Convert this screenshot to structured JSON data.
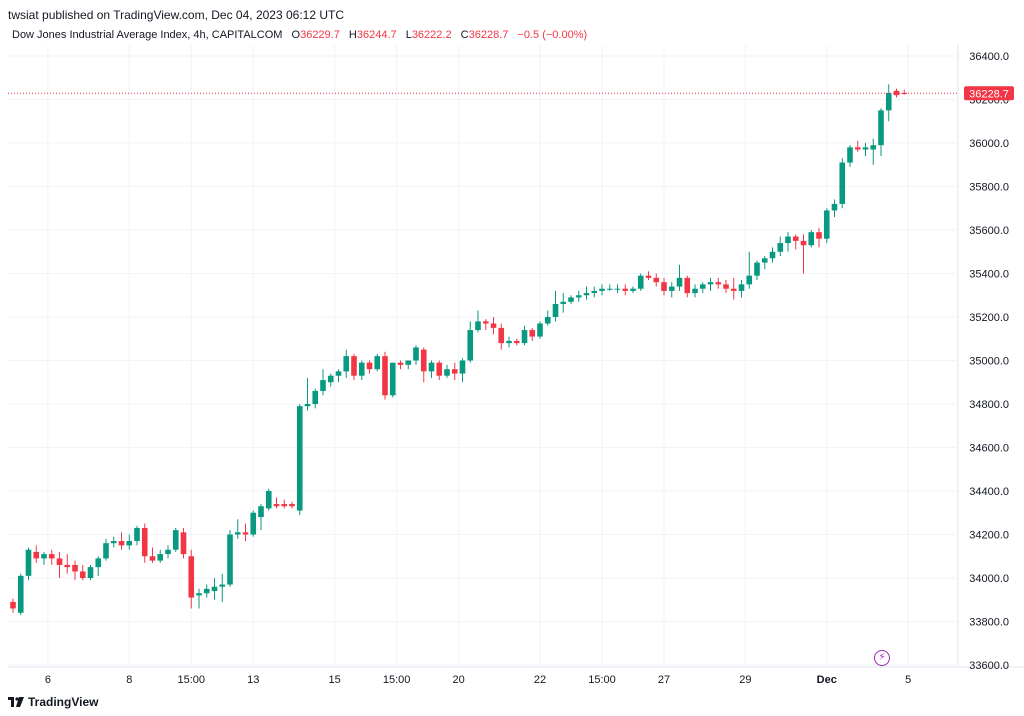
{
  "header": {
    "publisher": "twsiat",
    "published_on": "published on TradingView.com, Dec 04, 2023 06:12 UTC"
  },
  "legend": {
    "symbol": "Dow Jones Industrial Average Index, 4h, CAPITALCOM",
    "o_label": "O",
    "o_value": "36229.7",
    "h_label": "H",
    "h_value": "36244.7",
    "l_label": "L",
    "l_value": "36222.2",
    "c_label": "C",
    "c_value": "36228.7",
    "change": "−0.5 (−0.00%)"
  },
  "footer": {
    "brand": "TradingView"
  },
  "colors": {
    "up": "#089981",
    "down": "#f23645",
    "grid": "#f0f3fa",
    "axis_text": "#131722",
    "price_line": "#f23645"
  },
  "chart_data": {
    "type": "candlestick",
    "title": "",
    "xlabel": "",
    "ylabel": "",
    "ylim": [
      33560,
      36500
    ],
    "y_ticks": [
      33600,
      33800,
      34000,
      34200,
      34400,
      34600,
      34800,
      35000,
      35200,
      35400,
      35600,
      35800,
      36000,
      36200,
      36400
    ],
    "y_tick_labels": [
      "33600.0",
      "33800.0",
      "34000.0",
      "34200.0",
      "34400.0",
      "34600.0",
      "34800.0",
      "35000.0",
      "35200.0",
      "35400.0",
      "35600.0",
      "35800.0",
      "36000.0",
      "36200.0",
      "36400.0"
    ],
    "x_tick_labels": [
      {
        "label": "6",
        "bar": 4.5
      },
      {
        "label": "8",
        "bar": 15
      },
      {
        "label": "15:00",
        "bar": 23
      },
      {
        "label": "13",
        "bar": 31
      },
      {
        "label": "15",
        "bar": 41.5
      },
      {
        "label": "15:00",
        "bar": 49.5
      },
      {
        "label": "20",
        "bar": 57.5
      },
      {
        "label": "22",
        "bar": 68
      },
      {
        "label": "15:00",
        "bar": 76
      },
      {
        "label": "27",
        "bar": 84
      },
      {
        "label": "29",
        "bar": 94.5
      },
      {
        "label": "Dec",
        "bar": 105
      },
      {
        "label": "5",
        "bar": 115.5
      }
    ],
    "last_price_label": "36228.7",
    "last_price": 36228.7,
    "candles": [
      [
        33890,
        33905,
        33840,
        33860
      ],
      [
        33840,
        34020,
        33830,
        34010
      ],
      [
        34010,
        34140,
        33990,
        34130
      ],
      [
        34120,
        34150,
        34070,
        34090
      ],
      [
        34090,
        34120,
        34060,
        34110
      ],
      [
        34110,
        34130,
        34060,
        34090
      ],
      [
        34090,
        34120,
        34000,
        34060
      ],
      [
        34060,
        34110,
        34020,
        34050
      ],
      [
        34060,
        34080,
        33990,
        34030
      ],
      [
        34030,
        34060,
        33990,
        34000
      ],
      [
        34000,
        34060,
        33990,
        34050
      ],
      [
        34050,
        34100,
        34010,
        34090
      ],
      [
        34090,
        34180,
        34080,
        34160
      ],
      [
        34160,
        34190,
        34140,
        34170
      ],
      [
        34170,
        34210,
        34130,
        34150
      ],
      [
        34150,
        34200,
        34130,
        34170
      ],
      [
        34170,
        34240,
        34150,
        34230
      ],
      [
        34230,
        34250,
        34070,
        34100
      ],
      [
        34100,
        34140,
        34070,
        34080
      ],
      [
        34080,
        34130,
        34070,
        34110
      ],
      [
        34110,
        34150,
        34090,
        34130
      ],
      [
        34130,
        34230,
        34120,
        34220
      ],
      [
        34210,
        34230,
        34090,
        34110
      ],
      [
        34100,
        34130,
        33860,
        33910
      ],
      [
        33920,
        33950,
        33860,
        33930
      ],
      [
        33930,
        33970,
        33910,
        33950
      ],
      [
        33940,
        34000,
        33900,
        33960
      ],
      [
        33960,
        34020,
        33890,
        33970
      ],
      [
        33970,
        34220,
        33960,
        34200
      ],
      [
        34200,
        34270,
        34180,
        34210
      ],
      [
        34210,
        34250,
        34170,
        34200
      ],
      [
        34200,
        34310,
        34190,
        34300
      ],
      [
        34280,
        34340,
        34220,
        34330
      ],
      [
        34320,
        34410,
        34310,
        34400
      ],
      [
        34340,
        34370,
        34320,
        34330
      ],
      [
        34340,
        34360,
        34320,
        34330
      ],
      [
        34340,
        34350,
        34320,
        34330
      ],
      [
        34310,
        34800,
        34290,
        34790
      ],
      [
        34790,
        34920,
        34770,
        34800
      ],
      [
        34800,
        34870,
        34780,
        34860
      ],
      [
        34860,
        34960,
        34840,
        34910
      ],
      [
        34900,
        34940,
        34880,
        34930
      ],
      [
        34930,
        34960,
        34900,
        34950
      ],
      [
        34950,
        35050,
        34920,
        35020
      ],
      [
        35020,
        35030,
        34910,
        34930
      ],
      [
        34930,
        35000,
        34910,
        34990
      ],
      [
        34990,
        35000,
        34940,
        34960
      ],
      [
        34960,
        35030,
        34950,
        35020
      ],
      [
        35020,
        35040,
        34820,
        34840
      ],
      [
        34840,
        34990,
        34830,
        34990
      ],
      [
        34990,
        35000,
        34960,
        34980
      ],
      [
        34980,
        35000,
        34960,
        35000
      ],
      [
        35000,
        35070,
        34980,
        35060
      ],
      [
        35050,
        35060,
        34900,
        34950
      ],
      [
        34950,
        35000,
        34920,
        34990
      ],
      [
        34990,
        35000,
        34910,
        34930
      ],
      [
        34930,
        34980,
        34920,
        34960
      ],
      [
        34960,
        34990,
        34910,
        34940
      ],
      [
        34940,
        35010,
        34900,
        35000
      ],
      [
        35000,
        35180,
        34990,
        35140
      ],
      [
        35140,
        35230,
        35130,
        35180
      ],
      [
        35180,
        35190,
        35140,
        35170
      ],
      [
        35170,
        35200,
        35120,
        35150
      ],
      [
        35150,
        35170,
        35050,
        35080
      ],
      [
        35080,
        35110,
        35060,
        35090
      ],
      [
        35090,
        35100,
        35070,
        35080
      ],
      [
        35080,
        35160,
        35070,
        35140
      ],
      [
        35140,
        35150,
        35090,
        35110
      ],
      [
        35110,
        35180,
        35100,
        35170
      ],
      [
        35170,
        35230,
        35160,
        35200
      ],
      [
        35200,
        35320,
        35180,
        35260
      ],
      [
        35260,
        35310,
        35220,
        35270
      ],
      [
        35270,
        35300,
        35260,
        35290
      ],
      [
        35290,
        35320,
        35270,
        35300
      ],
      [
        35300,
        35340,
        35280,
        35310
      ],
      [
        35310,
        35340,
        35290,
        35320
      ],
      [
        35320,
        35350,
        35300,
        35330
      ],
      [
        35330,
        35350,
        35320,
        35330
      ],
      [
        35330,
        35350,
        35310,
        35330
      ],
      [
        35330,
        35350,
        35300,
        35320
      ],
      [
        35320,
        35340,
        35310,
        35330
      ],
      [
        35330,
        35400,
        35320,
        35390
      ],
      [
        35390,
        35410,
        35370,
        35380
      ],
      [
        35380,
        35400,
        35340,
        35360
      ],
      [
        35360,
        35380,
        35300,
        35320
      ],
      [
        35320,
        35360,
        35290,
        35340
      ],
      [
        35340,
        35440,
        35320,
        35380
      ],
      [
        35380,
        35390,
        35290,
        35310
      ],
      [
        35310,
        35350,
        35290,
        35330
      ],
      [
        35330,
        35360,
        35310,
        35350
      ],
      [
        35350,
        35380,
        35320,
        35360
      ],
      [
        35360,
        35380,
        35330,
        35350
      ],
      [
        35350,
        35370,
        35310,
        35330
      ],
      [
        35330,
        35380,
        35280,
        35320
      ],
      [
        35320,
        35370,
        35290,
        35350
      ],
      [
        35350,
        35500,
        35330,
        35390
      ],
      [
        35390,
        35460,
        35370,
        35450
      ],
      [
        35450,
        35480,
        35420,
        35470
      ],
      [
        35470,
        35520,
        35450,
        35500
      ],
      [
        35500,
        35570,
        35480,
        35540
      ],
      [
        35540,
        35590,
        35500,
        35570
      ],
      [
        35570,
        35580,
        35510,
        35550
      ],
      [
        35550,
        35580,
        35400,
        35530
      ],
      [
        35530,
        35600,
        35520,
        35590
      ],
      [
        35590,
        35610,
        35520,
        35560
      ],
      [
        35560,
        35700,
        35540,
        35690
      ],
      [
        35690,
        35740,
        35660,
        35720
      ],
      [
        35720,
        35930,
        35700,
        35910
      ],
      [
        35910,
        35990,
        35890,
        35980
      ],
      [
        35980,
        36010,
        35960,
        35970
      ],
      [
        35970,
        36000,
        35940,
        35980
      ],
      [
        35970,
        36020,
        35900,
        35990
      ],
      [
        35990,
        36160,
        35940,
        36150
      ],
      [
        36150,
        36270,
        36100,
        36230
      ],
      [
        36240,
        36250,
        36210,
        36220
      ],
      [
        36229.7,
        36244.7,
        36222.2,
        36228.7
      ]
    ]
  }
}
